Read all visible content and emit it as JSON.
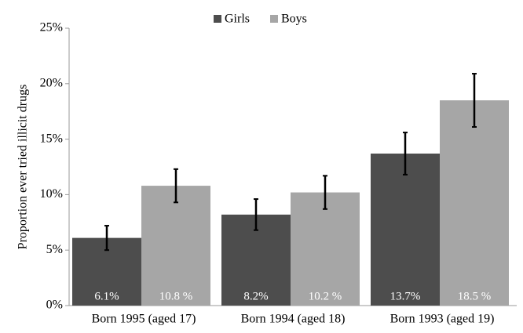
{
  "chart_data": {
    "type": "bar",
    "y_label": "Proportion ever tried illicit drugs",
    "categories": [
      "Born 1995 (aged 17)",
      "Born 1994 (aged 18)",
      "Born 1993 (aged 19)"
    ],
    "series": [
      {
        "name": "Girls",
        "color": "#4d4d4d",
        "values": [
          6.1,
          8.2,
          13.7
        ],
        "value_labels": [
          "6.1%",
          "8.2%",
          "13.7%"
        ],
        "errors": [
          1.1,
          1.4,
          1.9
        ]
      },
      {
        "name": "Boys",
        "color": "#a6a6a6",
        "values": [
          10.8,
          10.2,
          18.5
        ],
        "value_labels": [
          "10.8 %",
          "10.2 %",
          "18.5 %"
        ],
        "errors": [
          1.5,
          1.5,
          2.4
        ]
      }
    ],
    "ylim": [
      0,
      25
    ],
    "yticks": [
      {
        "value": 0,
        "label": "0%"
      },
      {
        "value": 5,
        "label": "5%"
      },
      {
        "value": 10,
        "label": "10%"
      },
      {
        "value": 15,
        "label": "15%"
      },
      {
        "value": 20,
        "label": "20%"
      },
      {
        "value": 25,
        "label": "25%"
      }
    ],
    "legend": "top"
  }
}
